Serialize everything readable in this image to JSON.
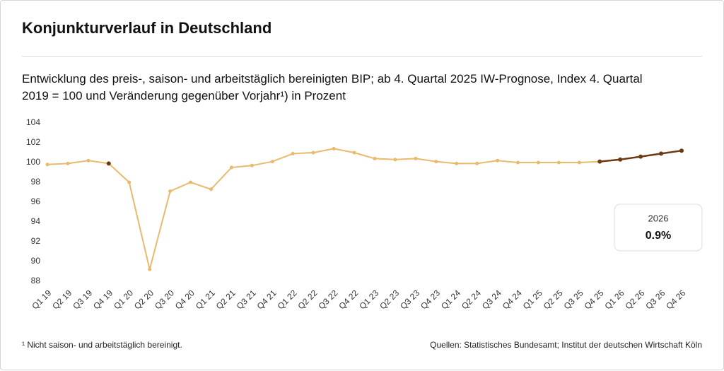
{
  "title": "Konjunkturverlauf in Deutschland",
  "chart_data": {
    "type": "line",
    "subtitle": "Entwicklung des preis-, saison- und arbeitstäglich bereinigten BIP; ab 4. Quartal 2025 IW-Prognose, Index 4. Quartal 2019 = 100 und Veränderung gegenüber Vorjahr¹) in Prozent",
    "categories": [
      "Q1 19",
      "Q2 19",
      "Q3 19",
      "Q4 19",
      "Q1 20",
      "Q2 20",
      "Q3 20",
      "Q4 20",
      "Q1 21",
      "Q2 21",
      "Q3 21",
      "Q4 21",
      "Q1 22",
      "Q2 22",
      "Q3 22",
      "Q4 22",
      "Q1 23",
      "Q2 23",
      "Q3 23",
      "Q4 23",
      "Q1 24",
      "Q2 24",
      "Q3 24",
      "Q4 24",
      "Q1 25",
      "Q2 25",
      "Q3 25",
      "Q4 25",
      "Q1 26",
      "Q2 26",
      "Q3 26",
      "Q4 26"
    ],
    "series": [
      {
        "color": "#e9b96e",
        "values": [
          99.8,
          99.9,
          100.2,
          99.9,
          98.0,
          89.2,
          97.1,
          98.0,
          97.3,
          99.5,
          99.7,
          100.1,
          100.9,
          101.0,
          101.4,
          101.0,
          100.4,
          100.3,
          100.4,
          100.1,
          99.9,
          99.9,
          100.2,
          100.0,
          100.0,
          100.0,
          100.0,
          100.1,
          null,
          null,
          null,
          null
        ]
      },
      {
        "color": "#6a3a12",
        "values": [
          null,
          null,
          null,
          99.9,
          null,
          null,
          null,
          null,
          null,
          null,
          null,
          null,
          null,
          null,
          null,
          null,
          null,
          null,
          null,
          null,
          null,
          null,
          null,
          null,
          null,
          null,
          null,
          100.1,
          100.3,
          100.6,
          100.9,
          101.2
        ]
      }
    ],
    "ylim": [
      88,
      104
    ],
    "yticks": [
      88,
      90,
      92,
      94,
      96,
      98,
      100,
      102,
      104
    ],
    "annotation": {
      "title": "2026",
      "value": 0.9,
      "value_label": "0.9%"
    },
    "footnote": "¹ Nicht saison- und arbeitstäglich bereinigt.",
    "source": "Quellen: Statistisches Bundesamt; Institut der deutschen Wirtschaft Köln"
  }
}
